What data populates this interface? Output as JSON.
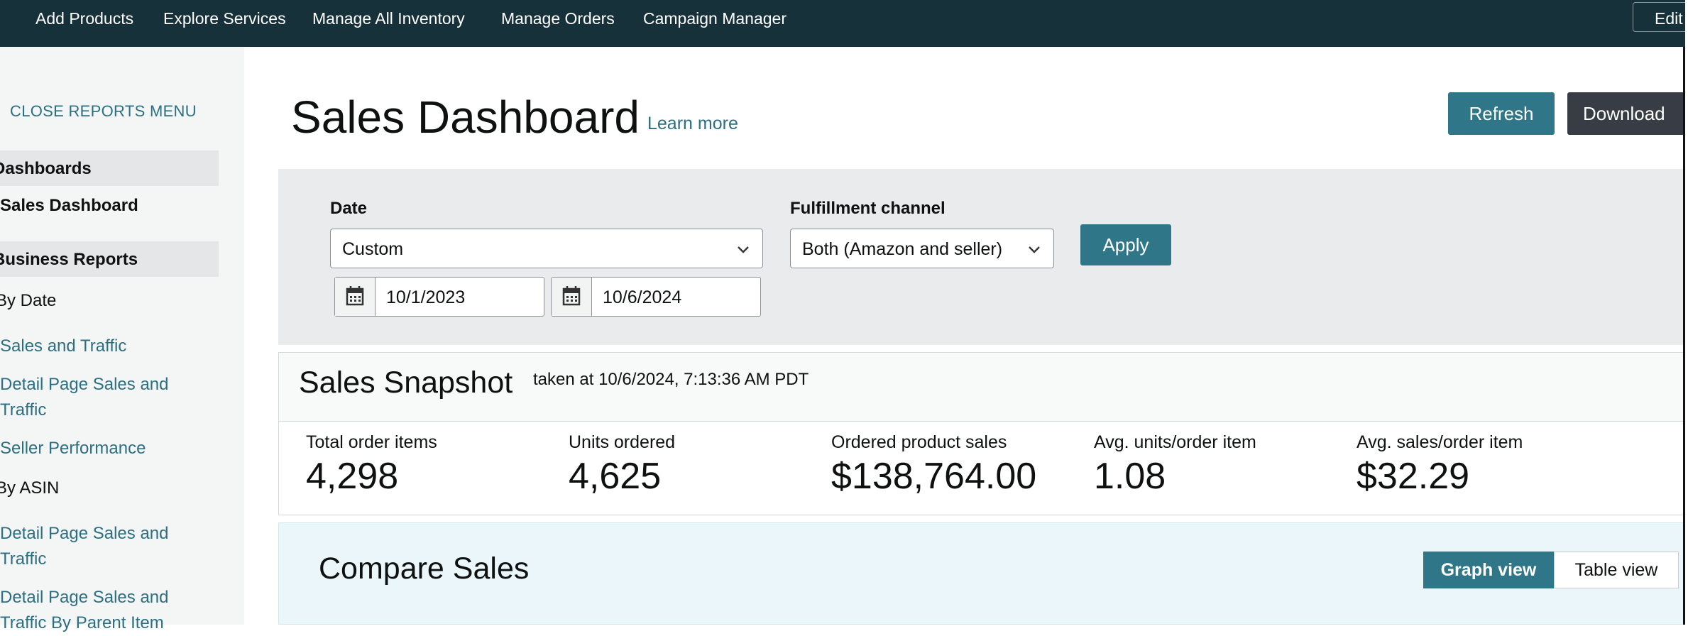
{
  "topnav": {
    "items": [
      "Add Products",
      "Explore Services",
      "Manage All Inventory",
      "Manage Orders",
      "Campaign Manager"
    ],
    "edit_label": "Edit"
  },
  "sidebar": {
    "close_label": "CLOSE REPORTS MENU",
    "dashboards_label": "Dashboards",
    "sales_dashboard": "Sales Dashboard",
    "business_reports_label": "Business Reports",
    "by_date": "By Date",
    "by_date_items": [
      "Sales and Traffic",
      "Detail Page Sales and",
      "Traffic",
      "Seller Performance"
    ],
    "by_asin": "By ASIN",
    "by_asin_items": [
      "Detail Page Sales and",
      "Traffic",
      "Detail Page Sales and",
      "Traffic By Parent Item"
    ]
  },
  "header": {
    "title": "Sales Dashboard",
    "learn_more": "Learn more",
    "refresh": "Refresh",
    "download": "Download"
  },
  "filters": {
    "date_label": "Date",
    "date_value": "Custom",
    "start_date": "10/1/2023",
    "end_date": "10/6/2024",
    "fulfillment_label": "Fulfillment channel",
    "fulfillment_value": "Both (Amazon and seller)",
    "apply": "Apply"
  },
  "snapshot": {
    "title": "Sales Snapshot",
    "taken": "taken at 10/6/2024, 7:13:36 AM PDT",
    "metrics": [
      {
        "label": "Total order items",
        "value": "4,298"
      },
      {
        "label": "Units ordered",
        "value": "4,625"
      },
      {
        "label": "Ordered product sales",
        "value": "$138,764.00"
      },
      {
        "label": "Avg. units/order item",
        "value": "1.08"
      },
      {
        "label": "Avg. sales/order item",
        "value": "$32.29"
      }
    ]
  },
  "compare": {
    "title": "Compare Sales",
    "graph_view": "Graph view",
    "table_view": "Table view"
  }
}
